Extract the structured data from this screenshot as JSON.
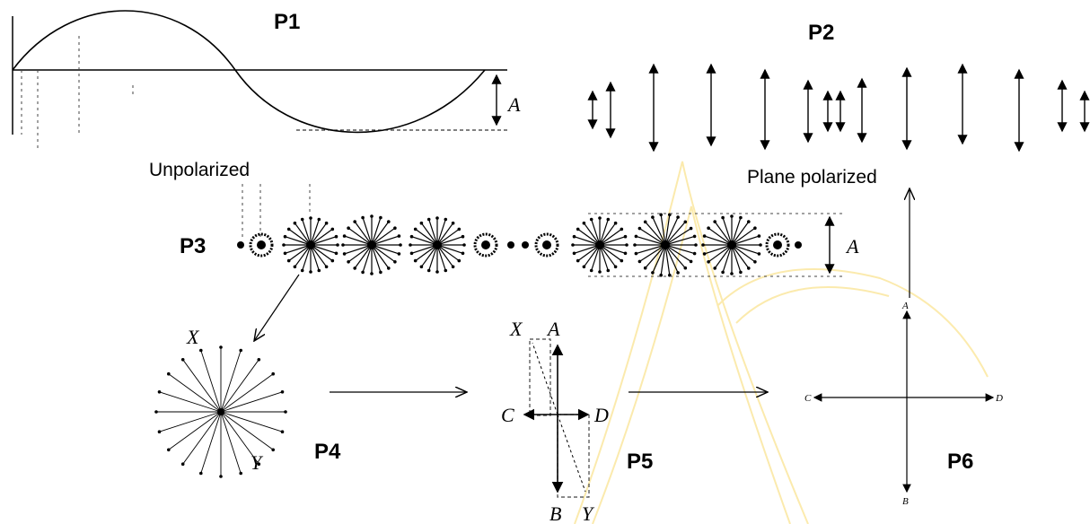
{
  "panels": {
    "p1": "P1",
    "p2": "P2",
    "p3": "P3",
    "p4": "P4",
    "p5": "P5",
    "p6": "P6"
  },
  "captions": {
    "unpolarized": "Unpolarized",
    "plane_polarized": "Plane polarized"
  },
  "amplitude_label": "A",
  "p4_labels": {
    "x": "X",
    "y": "Y"
  },
  "p5_labels": {
    "x": "X",
    "a": "A",
    "c": "C",
    "d": "D",
    "b": "B",
    "y": "Y"
  },
  "p6_labels": {
    "a": "A",
    "b": "B",
    "c": "C",
    "d": "D"
  },
  "watermark_color": "#f5c518"
}
